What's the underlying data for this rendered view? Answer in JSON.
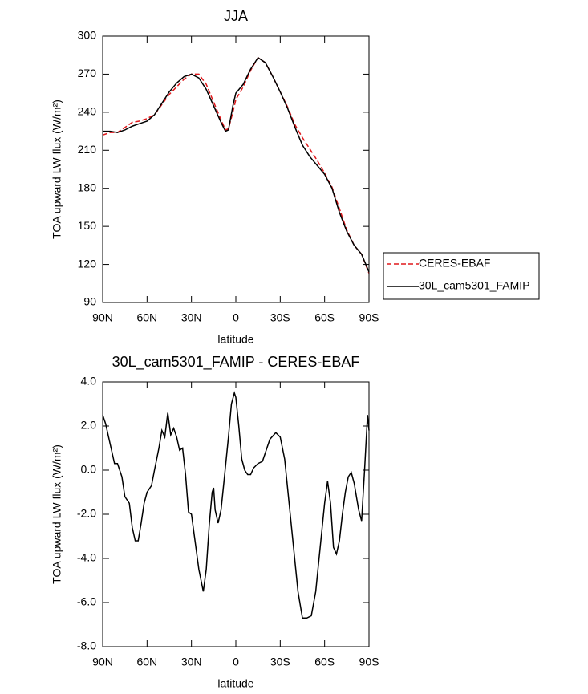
{
  "chart_data": [
    {
      "type": "line",
      "title": "JJA",
      "xlabel": "latitude",
      "ylabel": "TOA upward LW flux (W/m²)",
      "xlim": [
        90,
        -90
      ],
      "xticks": [
        {
          "value": 90,
          "label": "90N"
        },
        {
          "value": 60,
          "label": "60N"
        },
        {
          "value": 30,
          "label": "30N"
        },
        0,
        {
          "value": -30,
          "label": "30S"
        },
        {
          "value": -60,
          "label": "60S"
        },
        {
          "value": -90,
          "label": "90S"
        }
      ],
      "ylim": [
        90,
        300
      ],
      "yticks": [
        90,
        120,
        150,
        180,
        210,
        240,
        270,
        300
      ],
      "legend": "right",
      "x": [
        90,
        85,
        80,
        75,
        70,
        65,
        60,
        55,
        50,
        45,
        40,
        35,
        30,
        25,
        20,
        15,
        10,
        7,
        5,
        2,
        0,
        -5,
        -10,
        -15,
        -20,
        -25,
        -30,
        -35,
        -40,
        -45,
        -50,
        -55,
        -60,
        -65,
        -70,
        -75,
        -80,
        -85,
        -90
      ],
      "series": [
        {
          "name": "CERES-EBAF",
          "color": "#e0191c",
          "line_style": "dashed",
          "values": [
            222,
            224,
            224,
            228,
            232,
            233,
            235,
            238,
            246,
            254,
            260,
            266,
            270,
            270,
            262,
            248,
            234,
            226,
            227,
            240,
            250,
            260,
            273,
            283,
            279,
            268,
            256,
            244,
            230,
            220,
            211,
            202,
            192,
            181,
            164,
            147,
            135,
            128,
            113
          ]
        },
        {
          "name": "30L_cam5301_FAMIP",
          "color": "#000000",
          "line_style": "solid",
          "values": [
            225,
            225,
            224,
            226,
            229,
            231,
            233,
            238,
            247,
            256,
            263,
            268,
            270,
            267,
            258,
            245,
            232,
            225,
            226,
            245,
            255,
            262,
            274,
            283,
            279,
            268,
            256,
            243,
            228,
            214,
            205,
            198,
            191,
            180,
            161,
            146,
            135,
            128,
            114
          ]
        }
      ]
    },
    {
      "type": "line",
      "title": "30L_cam5301_FAMIP - CERES-EBAF",
      "xlabel": "latitude",
      "ylabel": "TOA upward LW flux (W/m²)",
      "xlim": [
        90,
        -90
      ],
      "xticks": [
        {
          "value": 90,
          "label": "90N"
        },
        {
          "value": 60,
          "label": "60N"
        },
        {
          "value": 30,
          "label": "30N"
        },
        0,
        {
          "value": -30,
          "label": "30S"
        },
        {
          "value": -60,
          "label": "60S"
        },
        {
          "value": -90,
          "label": "90S"
        }
      ],
      "ylim": [
        -8,
        4
      ],
      "yticks": [
        {
          "value": -8,
          "label": "-8.0"
        },
        {
          "value": -6,
          "label": "-6.0"
        },
        {
          "value": -4,
          "label": "-4.0"
        },
        {
          "value": -2,
          "label": "-2.0"
        },
        {
          "value": 0,
          "label": "0.0"
        },
        {
          "value": 2,
          "label": "2.0"
        },
        {
          "value": 4,
          "label": "4.0"
        }
      ],
      "x": [
        90,
        88,
        85,
        82,
        80,
        77,
        75,
        72,
        70,
        68,
        66,
        64,
        62,
        60,
        57,
        55,
        52,
        50,
        48,
        46,
        44,
        42,
        40,
        38,
        36,
        34,
        32,
        30,
        28,
        25,
        22,
        20,
        18,
        16,
        15,
        14,
        12,
        10,
        8,
        5,
        3,
        1,
        0,
        -2,
        -4,
        -6,
        -8,
        -10,
        -12,
        -15,
        -18,
        -20,
        -23,
        -27,
        -30,
        -33,
        -36,
        -39,
        -42,
        -45,
        -48,
        -51,
        -54,
        -57,
        -60,
        -62,
        -64,
        -66,
        -68,
        -70,
        -72,
        -74,
        -76,
        -78,
        -80,
        -83,
        -85,
        -87,
        -89,
        -90
      ],
      "series": [
        {
          "color": "#000000",
          "line_style": "solid",
          "values": [
            2.5,
            2.1,
            1.2,
            0.3,
            0.3,
            -0.3,
            -1.2,
            -1.5,
            -2.6,
            -3.2,
            -3.2,
            -2.4,
            -1.5,
            -1.0,
            -0.7,
            0,
            1,
            1.8,
            1.5,
            2.6,
            1.6,
            1.9,
            1.5,
            0.9,
            1.0,
            -0.2,
            -1.9,
            -2.0,
            -3,
            -4.5,
            -5.5,
            -4.5,
            -2.5,
            -1,
            -0.8,
            -1.8,
            -2.4,
            -1.8,
            -0.5,
            1.5,
            3.0,
            3.5,
            3.3,
            2,
            0.5,
            0,
            -0.2,
            -0.2,
            0.1,
            0.3,
            0.4,
            0.8,
            1.4,
            1.7,
            1.5,
            0.5,
            -1.5,
            -3.5,
            -5.5,
            -6.7,
            -6.7,
            -6.6,
            -5.5,
            -3.5,
            -1.5,
            -0.5,
            -1.5,
            -3.5,
            -3.8,
            -3.2,
            -2.0,
            -1.0,
            -0.3,
            -0.1,
            -0.6,
            -1.8,
            -2.3,
            0,
            2.5,
            1.8
          ]
        }
      ]
    }
  ]
}
